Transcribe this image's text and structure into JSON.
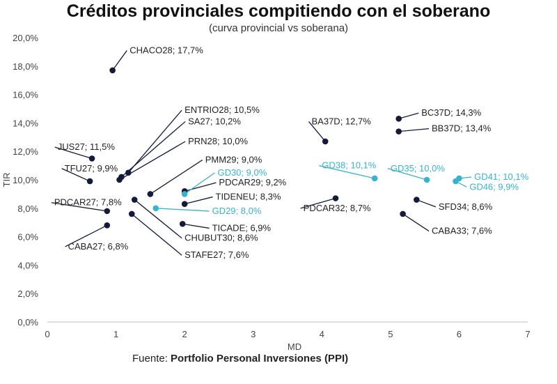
{
  "chart_data": {
    "type": "scatter",
    "title": "Créditos provinciales compitiendo con el soberano",
    "subtitle": "(curva provincial vs soberana)",
    "xlabel": "MD",
    "ylabel": "TIR",
    "xlim": [
      0,
      7
    ],
    "ylim": [
      0,
      20
    ],
    "xticks": [
      "0",
      "1",
      "2",
      "3",
      "4",
      "5",
      "6",
      "7"
    ],
    "yticks": [
      "0,0%",
      "2,0%",
      "4,0%",
      "6,0%",
      "8,0%",
      "10,0%",
      "12,0%",
      "14,0%",
      "16,0%",
      "18,0%",
      "20,0%"
    ],
    "grid": false,
    "colors": {
      "provincial": "#141b3a",
      "soberano": "#37b3d0"
    },
    "series": [
      {
        "name": "provincial",
        "points": [
          {
            "label": "CHACO28; 17,7%",
            "x": 0.95,
            "y": 17.7,
            "lx": 1.2,
            "ly": 18.9,
            "anchor": "start"
          },
          {
            "label": "ENTRIO28; 10,5%",
            "x": 1.18,
            "y": 10.5,
            "lx": 2.0,
            "ly": 14.7,
            "anchor": "start"
          },
          {
            "label": "SA27; 10,2%",
            "x": 1.08,
            "y": 10.2,
            "lx": 2.05,
            "ly": 13.9,
            "anchor": "start"
          },
          {
            "label": "PRN28; 10,0%",
            "x": 1.05,
            "y": 10.0,
            "lx": 2.05,
            "ly": 12.5,
            "anchor": "start"
          },
          {
            "label": "JUS27; 11,5%",
            "x": 0.65,
            "y": 11.5,
            "lx": 0.15,
            "ly": 12.1,
            "anchor": "start"
          },
          {
            "label": "TFU27; 9,9%",
            "x": 0.62,
            "y": 9.9,
            "lx": 0.25,
            "ly": 10.6,
            "anchor": "start"
          },
          {
            "label": "PMM29; 9,0%",
            "x": 1.5,
            "y": 9.0,
            "lx": 2.3,
            "ly": 11.2,
            "anchor": "start"
          },
          {
            "label": "PDCAR29; 9,2%",
            "x": 2.0,
            "y": 9.2,
            "lx": 2.5,
            "ly": 9.6,
            "anchor": "start"
          },
          {
            "label": "PDCAR27; 7,8%",
            "x": 0.87,
            "y": 7.8,
            "lx": 0.1,
            "ly": 8.2,
            "anchor": "start"
          },
          {
            "label": "TIDENEU; 8,3%",
            "x": 2.0,
            "y": 8.3,
            "lx": 2.45,
            "ly": 8.6,
            "anchor": "start"
          },
          {
            "label": "CABA27; 6,8%",
            "x": 0.87,
            "y": 6.8,
            "lx": 0.3,
            "ly": 5.1,
            "anchor": "start"
          },
          {
            "label": "TICADE; 6,9%",
            "x": 1.97,
            "y": 6.9,
            "lx": 2.4,
            "ly": 6.4,
            "anchor": "start"
          },
          {
            "label": "CHUBUT30; 8,6%",
            "x": 1.27,
            "y": 8.6,
            "lx": 2.0,
            "ly": 5.7,
            "anchor": "start"
          },
          {
            "label": "STAFE27; 7,6%",
            "x": 1.23,
            "y": 7.6,
            "lx": 2.0,
            "ly": 4.5,
            "anchor": "start"
          },
          {
            "label": "BA37D; 12,7%",
            "x": 4.05,
            "y": 12.7,
            "lx": 3.85,
            "ly": 13.9,
            "anchor": "start"
          },
          {
            "label": "BC37D; 14,3%",
            "x": 5.12,
            "y": 14.3,
            "lx": 5.45,
            "ly": 14.5,
            "anchor": "start"
          },
          {
            "label": "BB37D; 13,4%",
            "x": 5.12,
            "y": 13.4,
            "lx": 5.6,
            "ly": 13.4,
            "anchor": "start"
          },
          {
            "label": "PDCAR32; 8,7%",
            "x": 4.2,
            "y": 8.7,
            "lx": 3.73,
            "ly": 7.8,
            "anchor": "start"
          },
          {
            "label": "SFD34; 8,6%",
            "x": 5.38,
            "y": 8.6,
            "lx": 5.7,
            "ly": 7.9,
            "anchor": "start"
          },
          {
            "label": "CABA33; 7,6%",
            "x": 5.18,
            "y": 7.6,
            "lx": 5.6,
            "ly": 6.2,
            "anchor": "start"
          }
        ]
      },
      {
        "name": "soberano",
        "points": [
          {
            "label": "GD30; 9,0%",
            "x": 2.0,
            "y": 9.0,
            "lx": 2.48,
            "ly": 10.3,
            "anchor": "start"
          },
          {
            "label": "GD29; 8,0%",
            "x": 1.58,
            "y": 8.0,
            "lx": 2.4,
            "ly": 7.6,
            "anchor": "start"
          },
          {
            "label": "GD38; 10,1%",
            "x": 4.77,
            "y": 10.1,
            "lx": 4.0,
            "ly": 10.8,
            "anchor": "start"
          },
          {
            "label": "GD35; 10,0%",
            "x": 5.53,
            "y": 10.0,
            "lx": 5.0,
            "ly": 10.6,
            "anchor": "start"
          },
          {
            "label": "GD41; 10,1%",
            "x": 6.0,
            "y": 10.1,
            "lx": 6.22,
            "ly": 10.0,
            "anchor": "start"
          },
          {
            "label": "GD46; 9,9%",
            "x": 5.95,
            "y": 9.9,
            "lx": 6.15,
            "ly": 9.3,
            "anchor": "start"
          }
        ]
      }
    ]
  },
  "source": {
    "prefix": "Fuente:",
    "name": "Portfolio Personal Inversiones (PPI)"
  }
}
